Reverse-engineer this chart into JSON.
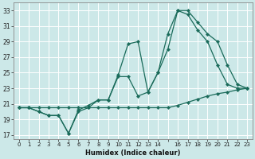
{
  "xlabel": "Humidex (Indice chaleur)",
  "bg_color": "#cce8e8",
  "grid_color": "#ffffff",
  "line_color": "#1a6b5a",
  "xlim": [
    -0.5,
    23.5
  ],
  "ylim": [
    16.5,
    34.0
  ],
  "yticks": [
    17,
    19,
    21,
    23,
    25,
    27,
    29,
    31,
    33
  ],
  "xtick_labels": [
    "0",
    "1",
    "2",
    "3",
    "4",
    "5",
    "6",
    "7",
    "8",
    "9",
    "10",
    "11",
    "12",
    "13",
    "14",
    "",
    "16",
    "17",
    "18",
    "19",
    "20",
    "21",
    "22",
    "23"
  ],
  "line1_x": [
    0,
    1,
    2,
    3,
    4,
    5,
    6,
    7,
    8,
    9,
    10,
    11,
    12,
    13,
    14,
    15,
    16,
    17,
    18,
    19,
    20,
    21,
    22,
    23
  ],
  "line1_y": [
    20.5,
    20.5,
    20.5,
    20.5,
    20.5,
    20.5,
    20.5,
    20.5,
    20.5,
    20.5,
    20.5,
    20.5,
    20.5,
    20.5,
    20.5,
    20.5,
    20.8,
    21.2,
    21.6,
    22.0,
    22.3,
    22.5,
    22.8,
    23.0
  ],
  "line2_x": [
    0,
    1,
    2,
    3,
    4,
    5,
    6,
    7,
    8,
    9,
    10,
    11,
    12,
    13,
    14,
    15,
    16,
    17,
    18,
    19,
    20,
    21,
    22,
    23
  ],
  "line2_y": [
    20.5,
    20.5,
    20.0,
    19.5,
    19.5,
    17.2,
    20.2,
    20.8,
    21.5,
    21.5,
    24.7,
    28.7,
    29.0,
    22.5,
    25.0,
    30.0,
    33.0,
    32.5,
    30.5,
    29.0,
    26.0,
    23.5,
    23.0,
    23.0
  ],
  "line3_x": [
    0,
    1,
    2,
    3,
    4,
    5,
    6,
    7,
    8,
    9,
    10,
    11,
    12,
    13,
    14,
    15,
    16,
    17,
    18,
    19,
    20,
    21,
    22,
    23
  ],
  "line3_y": [
    20.5,
    20.5,
    20.0,
    19.5,
    19.5,
    17.2,
    20.0,
    20.5,
    21.5,
    21.5,
    24.5,
    24.5,
    22.0,
    22.5,
    25.0,
    28.0,
    33.0,
    33.0,
    31.5,
    30.0,
    29.0,
    26.0,
    23.5,
    23.0
  ]
}
